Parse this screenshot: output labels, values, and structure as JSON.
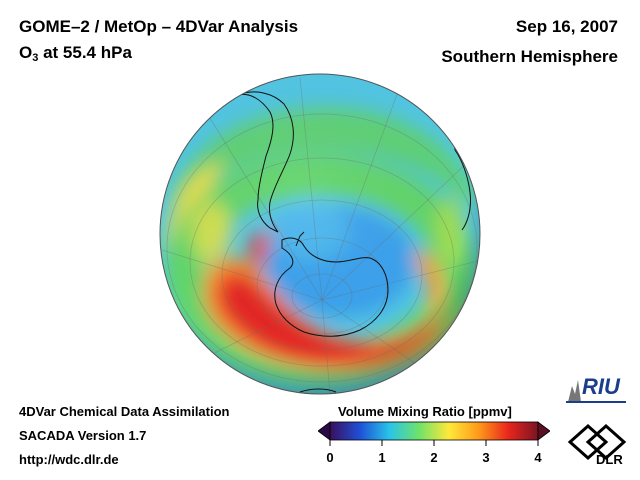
{
  "header": {
    "title_line_1": "GOME–2 / MetOp – 4DVar Analysis",
    "title_line_2_main": "O",
    "title_line_2_sub": "3",
    "title_line_2_rest": " at 55.4 hPa",
    "date": "Sep 16, 2007",
    "region": "Southern Hemisphere"
  },
  "footer": {
    "line_1": "4DVar Chemical Data Assimilation",
    "line_2": "SACADA Version 1.7",
    "line_3": "http://wdc.dlr.de"
  },
  "colorbar": {
    "title": "Volume Mixing Ratio [ppmv]",
    "ticks": [
      "0",
      "1",
      "2",
      "3",
      "4"
    ],
    "colors": [
      "#3a0f5c",
      "#1f4fd6",
      "#29c4e8",
      "#6fe26a",
      "#ffe83a",
      "#ff9a1a",
      "#e8261c",
      "#7a1424"
    ]
  },
  "logos": {
    "riu_text": "RIU",
    "dlr_text": "DLR"
  },
  "map": {
    "projection": "orthographic, south pole view",
    "colors": {
      "ocean_base": "#4bc2e8",
      "low_core": "#3aa0f0",
      "mid_ring": "#59d16a",
      "yellow_ring": "#f2e64a",
      "orange_ring": "#ff9030",
      "high_ring": "#e4232c"
    }
  }
}
